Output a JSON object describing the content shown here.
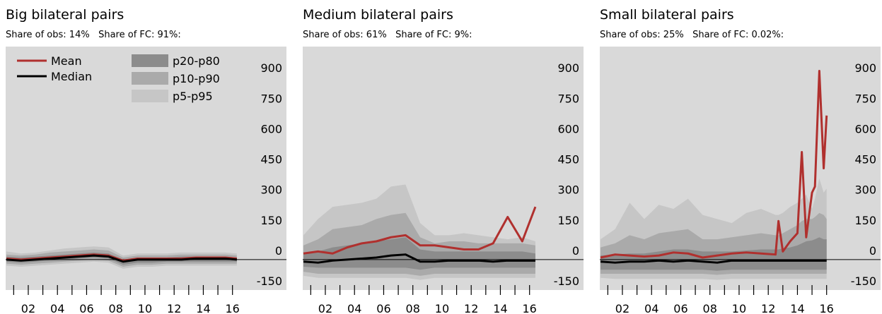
{
  "chart_data": [
    {
      "type": "line",
      "title": "Big bilateral pairs",
      "subtitle": "Share of obs: 14%   Share of FC: 91%:",
      "legend": "upper left",
      "background": "#d9d9d9",
      "x": [
        2000.5,
        2001.5,
        2002.5,
        2003.5,
        2004.5,
        2005.5,
        2006.5,
        2007.5,
        2008.5,
        2009.5,
        2010.5,
        2011.5,
        2012.5,
        2013.5,
        2014.5,
        2015.5,
        2016.3
      ],
      "xlim": [
        2000.45,
        2019.7
      ],
      "xticks": [
        {
          "value": 2002,
          "label": "02"
        },
        {
          "value": 2004,
          "label": "04"
        },
        {
          "value": 2006,
          "label": "06"
        },
        {
          "value": 2008,
          "label": "08"
        },
        {
          "value": 2010,
          "label": "10"
        },
        {
          "value": 2012,
          "label": "12"
        },
        {
          "value": 2014,
          "label": "14"
        },
        {
          "value": 2016,
          "label": "16"
        }
      ],
      "minor_xticks": [
        2001,
        2003,
        2005,
        2007,
        2009,
        2011,
        2013,
        2015
      ],
      "ylim": [
        -150,
        1050
      ],
      "yticks": [
        -150,
        0,
        150,
        300,
        450,
        600,
        750,
        900
      ],
      "series": [
        {
          "name": "p5-p95",
          "kind": "band",
          "color": "#c6c6c6",
          "high": [
            40,
            30,
            35,
            45,
            55,
            60,
            65,
            60,
            20,
            30,
            30,
            30,
            35,
            35,
            35,
            35,
            30
          ],
          "low": [
            -30,
            -35,
            -30,
            -25,
            -20,
            -15,
            -10,
            -15,
            -45,
            -35,
            -35,
            -30,
            -30,
            -30,
            -30,
            -30,
            -30
          ]
        },
        {
          "name": "p10-p90",
          "kind": "band",
          "color": "#aaaaaa",
          "high": [
            25,
            20,
            25,
            35,
            40,
            45,
            50,
            45,
            10,
            20,
            20,
            20,
            25,
            25,
            25,
            25,
            20
          ],
          "low": [
            -20,
            -25,
            -20,
            -15,
            -10,
            -5,
            0,
            -5,
            -35,
            -25,
            -25,
            -20,
            -20,
            -20,
            -20,
            -20,
            -20
          ]
        },
        {
          "name": "p20-p80",
          "kind": "band",
          "color": "#8c8c8c",
          "high": [
            15,
            10,
            15,
            20,
            25,
            30,
            35,
            30,
            0,
            10,
            10,
            10,
            15,
            15,
            15,
            15,
            10
          ],
          "low": [
            -10,
            -15,
            -10,
            -5,
            0,
            5,
            10,
            5,
            -25,
            -15,
            -15,
            -10,
            -10,
            -10,
            -10,
            -10,
            -10
          ]
        },
        {
          "name": "Mean",
          "kind": "line",
          "color": "#b0302e",
          "values": [
            5,
            0,
            5,
            10,
            15,
            20,
            25,
            20,
            -5,
            5,
            5,
            5,
            5,
            10,
            10,
            10,
            5
          ]
        },
        {
          "name": "Median",
          "kind": "line",
          "color": "#000000",
          "values": [
            0,
            -5,
            0,
            5,
            10,
            15,
            20,
            15,
            -10,
            0,
            0,
            0,
            0,
            5,
            5,
            5,
            0
          ]
        }
      ]
    },
    {
      "type": "line",
      "title": "Medium bilateral pairs",
      "subtitle": "Share of obs: 61%   Share of FC: 9%:",
      "background": "#d9d9d9",
      "x": [
        2000.5,
        2001.5,
        2002.5,
        2003.5,
        2004.5,
        2005.5,
        2006.5,
        2007.5,
        2008.5,
        2009.5,
        2010.5,
        2011.5,
        2012.5,
        2013.5,
        2014.5,
        2015.5,
        2016.4
      ],
      "xlim": [
        2000.45,
        2019.7
      ],
      "xticks": [
        {
          "value": 2002,
          "label": "02"
        },
        {
          "value": 2004,
          "label": "04"
        },
        {
          "value": 2006,
          "label": "06"
        },
        {
          "value": 2008,
          "label": "08"
        },
        {
          "value": 2010,
          "label": "10"
        },
        {
          "value": 2012,
          "label": "12"
        },
        {
          "value": 2014,
          "label": "14"
        },
        {
          "value": 2016,
          "label": "16"
        }
      ],
      "minor_xticks": [
        2001,
        2003,
        2005,
        2007,
        2009,
        2011,
        2013,
        2015
      ],
      "ylim": [
        -150,
        1050
      ],
      "yticks": [
        -150,
        0,
        150,
        300,
        450,
        600,
        750,
        900
      ],
      "series": [
        {
          "name": "p5-p95",
          "kind": "band",
          "color": "#c6c6c6",
          "high": [
            120,
            200,
            260,
            270,
            280,
            300,
            360,
            370,
            180,
            120,
            120,
            130,
            120,
            110,
            100,
            110,
            90
          ],
          "low": [
            -80,
            -90,
            -90,
            -90,
            -90,
            -90,
            -90,
            -90,
            -100,
            -90,
            -90,
            -90,
            -90,
            -90,
            -90,
            -90,
            -90
          ]
        },
        {
          "name": "p10-p90",
          "kind": "band",
          "color": "#aaaaaa",
          "high": [
            70,
            100,
            150,
            160,
            170,
            200,
            220,
            230,
            110,
            80,
            90,
            90,
            80,
            80,
            80,
            80,
            70
          ],
          "low": [
            -60,
            -70,
            -70,
            -70,
            -70,
            -70,
            -70,
            -70,
            -80,
            -70,
            -70,
            -70,
            -70,
            -70,
            -70,
            -70,
            -70
          ]
        },
        {
          "name": "p20-p80",
          "kind": "band",
          "color": "#8c8c8c",
          "high": [
            30,
            40,
            60,
            70,
            80,
            90,
            100,
            110,
            50,
            40,
            40,
            40,
            40,
            40,
            40,
            40,
            30
          ],
          "low": [
            -35,
            -40,
            -40,
            -40,
            -40,
            -40,
            -40,
            -40,
            -50,
            -40,
            -40,
            -40,
            -40,
            -40,
            -40,
            -40,
            -40
          ]
        },
        {
          "name": "Mean",
          "kind": "line",
          "color": "#b0302e",
          "values": [
            30,
            40,
            30,
            60,
            80,
            90,
            110,
            120,
            70,
            70,
            60,
            50,
            50,
            80,
            210,
            90,
            260
          ]
        },
        {
          "name": "Median",
          "kind": "line",
          "color": "#000000",
          "values": [
            -10,
            -15,
            -5,
            0,
            5,
            10,
            20,
            25,
            -10,
            -10,
            -5,
            -5,
            -5,
            -10,
            -5,
            -5,
            -5
          ]
        }
      ]
    },
    {
      "type": "line",
      "title": "Small bilateral pairs",
      "subtitle": "Share of obs: 25%   Share of FC: 0.02%:",
      "background": "#d9d9d9",
      "x": [
        2000.5,
        2001.5,
        2002.5,
        2003.5,
        2004.5,
        2005.5,
        2006.5,
        2007.5,
        2008.5,
        2009.5,
        2010.5,
        2011.5,
        2012.5,
        2012.7,
        2013.0,
        2013.5,
        2014.0,
        2014.3,
        2014.6,
        2015.0,
        2015.2,
        2015.5,
        2015.8,
        2016.0
      ],
      "xlim": [
        2000.45,
        2019.7
      ],
      "xticks": [
        {
          "value": 2002,
          "label": "02"
        },
        {
          "value": 2004,
          "label": "04"
        },
        {
          "value": 2006,
          "label": "06"
        },
        {
          "value": 2008,
          "label": "08"
        },
        {
          "value": 2010,
          "label": "10"
        },
        {
          "value": 2012,
          "label": "12"
        },
        {
          "value": 2014,
          "label": "14"
        },
        {
          "value": 2016,
          "label": "16"
        }
      ],
      "minor_xticks": [
        2001,
        2003,
        2005,
        2007,
        2009,
        2011,
        2013,
        2015
      ],
      "ylim": [
        -150,
        1050
      ],
      "yticks": [
        -150,
        0,
        150,
        300,
        450,
        600,
        750,
        900
      ],
      "series": [
        {
          "name": "p5-p95",
          "kind": "band",
          "color": "#c6c6c6",
          "high": [
            100,
            150,
            280,
            200,
            270,
            250,
            300,
            220,
            200,
            180,
            230,
            250,
            220,
            220,
            230,
            260,
            280,
            300,
            320,
            250,
            300,
            400,
            330,
            350
          ],
          "low": [
            -90,
            -95,
            -95,
            -95,
            -95,
            -95,
            -95,
            -95,
            -100,
            -95,
            -95,
            -95,
            -95,
            -95,
            -95,
            -95,
            -95,
            -95,
            -95,
            -95,
            -95,
            -95,
            -95,
            -95
          ]
        },
        {
          "name": "p10-p90",
          "kind": "band",
          "color": "#aaaaaa",
          "high": [
            60,
            80,
            120,
            100,
            130,
            140,
            150,
            100,
            100,
            110,
            120,
            130,
            120,
            120,
            130,
            150,
            170,
            190,
            200,
            200,
            210,
            230,
            220,
            200
          ],
          "low": [
            -70,
            -70,
            -70,
            -70,
            -70,
            -70,
            -70,
            -70,
            -75,
            -70,
            -70,
            -70,
            -70,
            -70,
            -70,
            -70,
            -70,
            -70,
            -70,
            -70,
            -70,
            -70,
            -70,
            -70
          ]
        },
        {
          "name": "p20-p80",
          "kind": "band",
          "color": "#8c8c8c",
          "high": [
            20,
            25,
            30,
            30,
            40,
            50,
            50,
            40,
            40,
            40,
            45,
            50,
            50,
            50,
            55,
            60,
            70,
            80,
            90,
            95,
            100,
            110,
            100,
            100
          ],
          "low": [
            -50,
            -50,
            -50,
            -50,
            -50,
            -50,
            -50,
            -50,
            -55,
            -50,
            -50,
            -50,
            -50,
            -50,
            -50,
            -50,
            -50,
            -50,
            -50,
            -50,
            -50,
            -50,
            -50,
            -50
          ]
        },
        {
          "name": "Mean",
          "kind": "line",
          "color": "#b0302e",
          "values": [
            10,
            25,
            20,
            15,
            20,
            35,
            30,
            10,
            20,
            30,
            35,
            30,
            25,
            190,
            40,
            90,
            130,
            530,
            110,
            330,
            360,
            930,
            450,
            710
          ]
        },
        {
          "name": "Median",
          "kind": "line",
          "color": "#000000",
          "values": [
            -10,
            -15,
            -10,
            -10,
            -5,
            -10,
            -5,
            -10,
            -15,
            -5,
            -5,
            -5,
            -5,
            -5,
            -5,
            -5,
            -5,
            -5,
            -5,
            -5,
            -5,
            -5,
            -5,
            -5
          ]
        }
      ]
    }
  ]
}
